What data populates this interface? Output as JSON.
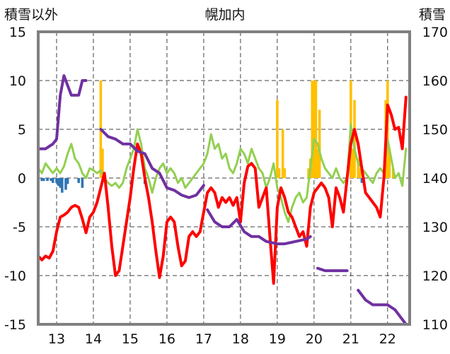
{
  "chart_data": {
    "type": "line",
    "title": "幌加内",
    "left_axis_label": "積雪以外",
    "right_axis_label": "積雪",
    "ylim_left": [
      -15,
      15
    ],
    "y_ticks_left": [
      -15,
      -10,
      -5,
      0,
      5,
      10,
      15
    ],
    "ylim_right": [
      110,
      170
    ],
    "y_ticks_right": [
      110,
      120,
      130,
      140,
      150,
      160,
      170
    ],
    "xlim": [
      12.5,
      22.6
    ],
    "x_ticks": [
      13,
      14,
      15,
      16,
      17,
      18,
      19,
      20,
      21,
      22
    ],
    "grid": "dashed vertical and horizontal",
    "series": [
      {
        "axis": "left",
        "color": "#ff0000",
        "points": [
          [
            12.5,
            -8.0
          ],
          [
            12.6,
            -8.4
          ],
          [
            12.7,
            -8.0
          ],
          [
            12.8,
            -8.2
          ],
          [
            12.9,
            -7.5
          ],
          [
            13.0,
            -5.5
          ],
          [
            13.1,
            -4.0
          ],
          [
            13.2,
            -3.8
          ],
          [
            13.3,
            -3.5
          ],
          [
            13.4,
            -3.0
          ],
          [
            13.5,
            -2.8
          ],
          [
            13.6,
            -3.0
          ],
          [
            13.7,
            -4.2
          ],
          [
            13.8,
            -5.6
          ],
          [
            13.9,
            -4.0
          ],
          [
            14.0,
            -3.5
          ],
          [
            14.1,
            -2.5
          ],
          [
            14.2,
            -1.0
          ],
          [
            14.3,
            0.5
          ],
          [
            14.4,
            -3.0
          ],
          [
            14.5,
            -7.0
          ],
          [
            14.6,
            -10.0
          ],
          [
            14.7,
            -9.5
          ],
          [
            14.8,
            -7.0
          ],
          [
            14.9,
            -4.5
          ],
          [
            15.0,
            -2.0
          ],
          [
            15.1,
            1.0
          ],
          [
            15.2,
            3.5
          ],
          [
            15.3,
            2.5
          ],
          [
            15.4,
            0.0
          ],
          [
            15.5,
            -2.0
          ],
          [
            15.6,
            -4.5
          ],
          [
            15.7,
            -7.5
          ],
          [
            15.8,
            -10.2
          ],
          [
            15.9,
            -8.0
          ],
          [
            16.0,
            -4.5
          ],
          [
            16.1,
            -4.0
          ],
          [
            16.2,
            -4.5
          ],
          [
            16.3,
            -7.0
          ],
          [
            16.4,
            -9.0
          ],
          [
            16.5,
            -8.5
          ],
          [
            16.6,
            -6.0
          ],
          [
            16.7,
            -5.5
          ],
          [
            16.8,
            -6.0
          ],
          [
            16.9,
            -5.5
          ],
          [
            17.0,
            -3.5
          ],
          [
            17.1,
            -1.5
          ],
          [
            17.2,
            -1.0
          ],
          [
            17.3,
            -1.5
          ],
          [
            17.4,
            -3.0
          ],
          [
            17.5,
            -2.0
          ],
          [
            17.6,
            -2.5
          ],
          [
            17.7,
            -2.0
          ],
          [
            17.8,
            -2.8
          ],
          [
            17.9,
            -2.0
          ],
          [
            18.0,
            -4.5
          ],
          [
            18.1,
            -0.5
          ],
          [
            18.2,
            1.2
          ],
          [
            18.3,
            1.5
          ],
          [
            18.4,
            1.0
          ],
          [
            18.5,
            -3.0
          ],
          [
            18.6,
            -2.0
          ],
          [
            18.7,
            -1.0
          ],
          [
            18.8,
            -6.0
          ],
          [
            18.9,
            -10.8
          ],
          [
            19.0,
            -3.0
          ],
          [
            19.1,
            -1.0
          ],
          [
            19.2,
            -2.0
          ],
          [
            19.3,
            -3.5
          ],
          [
            19.4,
            -4.0
          ],
          [
            19.5,
            -5.0
          ],
          [
            19.6,
            -6.0
          ],
          [
            19.7,
            -5.5
          ],
          [
            19.8,
            -7.0
          ],
          [
            19.9,
            -3.0
          ],
          [
            20.0,
            -1.5
          ],
          [
            20.1,
            -1.0
          ],
          [
            20.2,
            -0.5
          ],
          [
            20.3,
            -1.0
          ],
          [
            20.4,
            -2.0
          ],
          [
            20.5,
            -5.0
          ],
          [
            20.6,
            -1.0
          ],
          [
            20.7,
            -2.0
          ],
          [
            20.8,
            -3.5
          ],
          [
            20.9,
            0.0
          ],
          [
            21.0,
            3.5
          ],
          [
            21.1,
            5.0
          ],
          [
            21.2,
            3.5
          ],
          [
            21.3,
            1.0
          ],
          [
            21.4,
            -1.5
          ],
          [
            21.5,
            -2.0
          ],
          [
            21.6,
            -2.5
          ],
          [
            21.7,
            -3.0
          ],
          [
            21.8,
            -4.0
          ],
          [
            21.9,
            0.0
          ],
          [
            22.0,
            7.5
          ],
          [
            22.1,
            6.5
          ],
          [
            22.2,
            5.0
          ],
          [
            22.3,
            5.2
          ],
          [
            22.4,
            3.0
          ],
          [
            22.5,
            8.3
          ]
        ]
      },
      {
        "axis": "left",
        "color": "#92d050",
        "points": [
          [
            12.5,
            1.0
          ],
          [
            12.6,
            0.5
          ],
          [
            12.7,
            1.5
          ],
          [
            12.8,
            1.0
          ],
          [
            12.9,
            0.5
          ],
          [
            13.0,
            1.0
          ],
          [
            13.1,
            0.5
          ],
          [
            13.2,
            1.2
          ],
          [
            13.3,
            2.5
          ],
          [
            13.4,
            3.5
          ],
          [
            13.5,
            2.0
          ],
          [
            13.6,
            1.5
          ],
          [
            13.7,
            0.5
          ],
          [
            13.8,
            0.0
          ],
          [
            13.9,
            1.0
          ],
          [
            14.0,
            0.8
          ],
          [
            14.1,
            0.5
          ],
          [
            14.2,
            0.8
          ],
          [
            14.3,
            0.0
          ],
          [
            14.4,
            -0.5
          ],
          [
            14.5,
            -0.8
          ],
          [
            14.6,
            -0.5
          ],
          [
            14.7,
            -1.0
          ],
          [
            14.8,
            -0.5
          ],
          [
            14.9,
            1.0
          ],
          [
            15.0,
            2.0
          ],
          [
            15.1,
            3.0
          ],
          [
            15.2,
            5.0
          ],
          [
            15.3,
            3.5
          ],
          [
            15.4,
            1.0
          ],
          [
            15.5,
            0.0
          ],
          [
            15.6,
            -1.5
          ],
          [
            15.7,
            0.0
          ],
          [
            15.8,
            1.0
          ],
          [
            15.9,
            1.5
          ],
          [
            16.0,
            0.5
          ],
          [
            16.1,
            1.0
          ],
          [
            16.2,
            0.5
          ],
          [
            16.3,
            -0.5
          ],
          [
            16.4,
            0.0
          ],
          [
            16.5,
            -1.0
          ],
          [
            16.6,
            -0.5
          ],
          [
            16.7,
            0.0
          ],
          [
            16.8,
            0.5
          ],
          [
            16.9,
            1.0
          ],
          [
            17.0,
            1.5
          ],
          [
            17.1,
            2.5
          ],
          [
            17.2,
            4.5
          ],
          [
            17.3,
            3.0
          ],
          [
            17.4,
            3.5
          ],
          [
            17.5,
            2.0
          ],
          [
            17.6,
            2.5
          ],
          [
            17.7,
            1.0
          ],
          [
            17.8,
            0.5
          ],
          [
            17.9,
            1.5
          ],
          [
            18.0,
            3.0
          ],
          [
            18.1,
            2.5
          ],
          [
            18.2,
            1.5
          ],
          [
            18.3,
            3.0
          ],
          [
            18.4,
            2.0
          ],
          [
            18.5,
            1.0
          ],
          [
            18.6,
            0.5
          ],
          [
            18.7,
            -1.0
          ],
          [
            18.8,
            0.0
          ],
          [
            18.9,
            1.5
          ],
          [
            19.0,
            -1.0
          ],
          [
            19.1,
            -2.0
          ],
          [
            19.2,
            -3.5
          ],
          [
            19.3,
            -4.5
          ],
          [
            19.4,
            -3.0
          ],
          [
            19.5,
            -2.0
          ],
          [
            19.6,
            -1.5
          ],
          [
            19.7,
            -2.5
          ],
          [
            19.8,
            -2.0
          ],
          [
            19.9,
            1.0
          ],
          [
            20.0,
            4.0
          ],
          [
            20.1,
            3.5
          ],
          [
            20.2,
            2.0
          ],
          [
            20.3,
            1.0
          ],
          [
            20.4,
            0.5
          ],
          [
            20.5,
            0.0
          ],
          [
            20.6,
            1.0
          ],
          [
            20.7,
            0.0
          ],
          [
            20.8,
            -0.5
          ],
          [
            20.9,
            0.0
          ],
          [
            21.0,
            5.5
          ],
          [
            21.1,
            3.0
          ],
          [
            21.2,
            1.5
          ],
          [
            21.3,
            1.0
          ],
          [
            21.4,
            0.5
          ],
          [
            21.5,
            0.0
          ],
          [
            21.6,
            -0.5
          ],
          [
            21.7,
            0.5
          ],
          [
            21.8,
            1.0
          ],
          [
            21.9,
            0.5
          ],
          [
            22.0,
            4.0
          ],
          [
            22.1,
            2.0
          ],
          [
            22.2,
            0.0
          ],
          [
            22.3,
            0.5
          ],
          [
            22.4,
            -0.8
          ],
          [
            22.5,
            3.0
          ]
        ]
      },
      {
        "axis": "right",
        "color": "#7030a0",
        "segments": [
          [
            [
              12.5,
              146.0
            ],
            [
              12.7,
              146.0
            ],
            [
              12.9,
              147.0
            ],
            [
              13.0,
              148.0
            ],
            [
              13.1,
              157.0
            ],
            [
              13.2,
              161.0
            ],
            [
              13.3,
              159.0
            ],
            [
              13.4,
              157.0
            ],
            [
              13.5,
              157.0
            ],
            [
              13.6,
              157.0
            ],
            [
              13.7,
              160.0
            ],
            [
              13.8,
              160.0
            ]
          ],
          [
            [
              14.2,
              150.0
            ],
            [
              14.4,
              148.5
            ],
            [
              14.6,
              148.0
            ],
            [
              14.8,
              147.0
            ],
            [
              15.0,
              147.0
            ],
            [
              15.2,
              145.5
            ],
            [
              15.4,
              145.0
            ],
            [
              15.6,
              142.0
            ],
            [
              15.8,
              141.0
            ],
            [
              16.0,
              138.0
            ],
            [
              16.2,
              137.5
            ],
            [
              16.4,
              136.5
            ],
            [
              16.6,
              136.0
            ],
            [
              16.8,
              136.5
            ],
            [
              17.0,
              138.5
            ]
          ],
          [
            [
              17.1,
              133.5
            ],
            [
              17.3,
              131.0
            ],
            [
              17.5,
              130.0
            ],
            [
              17.7,
              130.0
            ],
            [
              17.9,
              131.5
            ],
            [
              18.1,
              129.0
            ],
            [
              18.3,
              128.0
            ],
            [
              18.5,
              128.0
            ],
            [
              18.7,
              127.0
            ],
            [
              19.0,
              126.5
            ],
            [
              19.2,
              126.5
            ],
            [
              19.5,
              127.0
            ],
            [
              19.8,
              127.5
            ],
            [
              19.9,
              128.0
            ]
          ],
          [
            [
              20.1,
              121.5
            ],
            [
              20.3,
              121.0
            ],
            [
              20.9,
              121.0
            ]
          ],
          [
            [
              21.2,
              117.0
            ],
            [
              21.4,
              115.0
            ],
            [
              21.6,
              114.0
            ],
            [
              22.0,
              114.0
            ],
            [
              22.2,
              113.0
            ],
            [
              22.4,
              111.0
            ],
            [
              22.5,
              110.0
            ]
          ]
        ]
      }
    ],
    "bars_yellow": [
      [
        14.2,
        10
      ],
      [
        14.25,
        3
      ],
      [
        19.0,
        8
      ],
      [
        19.05,
        1
      ],
      [
        19.15,
        5
      ],
      [
        19.2,
        1
      ],
      [
        19.85,
        1
      ],
      [
        19.9,
        2
      ],
      [
        19.95,
        10
      ],
      [
        20.0,
        10
      ],
      [
        20.05,
        10
      ],
      [
        20.1,
        3
      ],
      [
        20.15,
        7
      ],
      [
        21.0,
        10
      ],
      [
        21.05,
        3
      ],
      [
        21.1,
        8
      ],
      [
        21.2,
        2
      ],
      [
        21.25,
        1
      ],
      [
        21.95,
        8
      ],
      [
        22.0,
        10
      ],
      [
        22.05,
        3
      ],
      [
        22.15,
        1
      ]
    ],
    "bars_blue": [
      [
        12.6,
        -0.3
      ],
      [
        12.65,
        -0.3
      ],
      [
        12.75,
        -0.3
      ],
      [
        12.85,
        -0.3
      ],
      [
        12.9,
        -0.5
      ],
      [
        13.0,
        -0.5
      ],
      [
        13.05,
        -0.8
      ],
      [
        13.1,
        -1.0
      ],
      [
        13.15,
        -1.5
      ],
      [
        13.25,
        -1.2
      ],
      [
        13.3,
        -0.6
      ],
      [
        13.6,
        -0.5
      ],
      [
        13.7,
        -1.0
      ],
      [
        15.4,
        -0.6
      ],
      [
        21.3,
        -0.5
      ]
    ]
  }
}
